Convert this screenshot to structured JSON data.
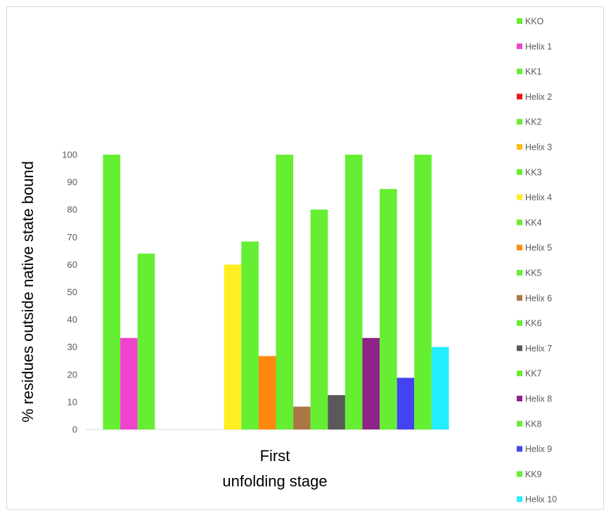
{
  "chart_data": {
    "type": "bar",
    "title": "",
    "xlabel": "",
    "ylabel": "% residues outside native state bound",
    "category_label_lines": [
      "First",
      "unfolding stage"
    ],
    "ylim": [
      0,
      100
    ],
    "yticks": [
      0,
      10,
      20,
      30,
      40,
      50,
      60,
      70,
      80,
      90,
      100
    ],
    "grid": false,
    "legend_position": "right",
    "series": [
      {
        "name": "KKO",
        "color": "#66ee33",
        "value": 100
      },
      {
        "name": "Helix 1",
        "color": "#ee44cc",
        "value": 33.3
      },
      {
        "name": "KK1",
        "color": "#66ee33",
        "value": 64
      },
      {
        "name": "Helix 2",
        "color": "#ee1111",
        "value": 0
      },
      {
        "name": "KK2",
        "color": "#66ee33",
        "value": 0
      },
      {
        "name": "Helix 3",
        "color": "#ffbb11",
        "value": 0
      },
      {
        "name": "KK3",
        "color": "#66ee33",
        "value": 0
      },
      {
        "name": "Helix 4",
        "color": "#ffee22",
        "value": 60
      },
      {
        "name": "KK4",
        "color": "#66ee33",
        "value": 68.4
      },
      {
        "name": "Helix 5",
        "color": "#ff8811",
        "value": 26.7
      },
      {
        "name": "KK5",
        "color": "#66ee33",
        "value": 100
      },
      {
        "name": "Helix 6",
        "color": "#aa7744",
        "value": 8.3
      },
      {
        "name": "KK6",
        "color": "#66ee33",
        "value": 80
      },
      {
        "name": "Helix 7",
        "color": "#595959",
        "value": 12.5
      },
      {
        "name": "KK7",
        "color": "#66ee33",
        "value": 100
      },
      {
        "name": "Helix 8",
        "color": "#8e2388",
        "value": 33.3
      },
      {
        "name": "KK8",
        "color": "#66ee33",
        "value": 87.5
      },
      {
        "name": "Helix 9",
        "color": "#4444ee",
        "value": 18.8
      },
      {
        "name": "KK9",
        "color": "#66ee33",
        "value": 100
      },
      {
        "name": "Helix 10",
        "color": "#22eeff",
        "value": 30
      }
    ]
  }
}
